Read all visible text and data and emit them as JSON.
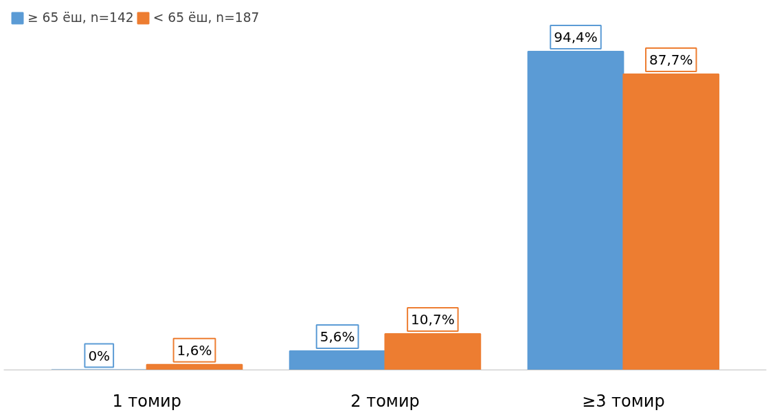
{
  "chart_data": {
    "type": "bar",
    "categories": [
      "1 томир",
      "2 томир",
      "≥3 томир"
    ],
    "series": [
      {
        "name": "≥ 65 ёш, n=142",
        "color": "#5b9bd5",
        "values": [
          0,
          5.6,
          94.4
        ],
        "value_labels": [
          "0%",
          "5,6%",
          "94,4%"
        ]
      },
      {
        "name": "< 65 ёш, n=187",
        "color": "#ed7d31",
        "values": [
          1.6,
          10.7,
          87.7
        ],
        "value_labels": [
          "1,6%",
          "10,7%",
          "87,7%"
        ]
      }
    ],
    "legend": "top left",
    "grid": false
  }
}
